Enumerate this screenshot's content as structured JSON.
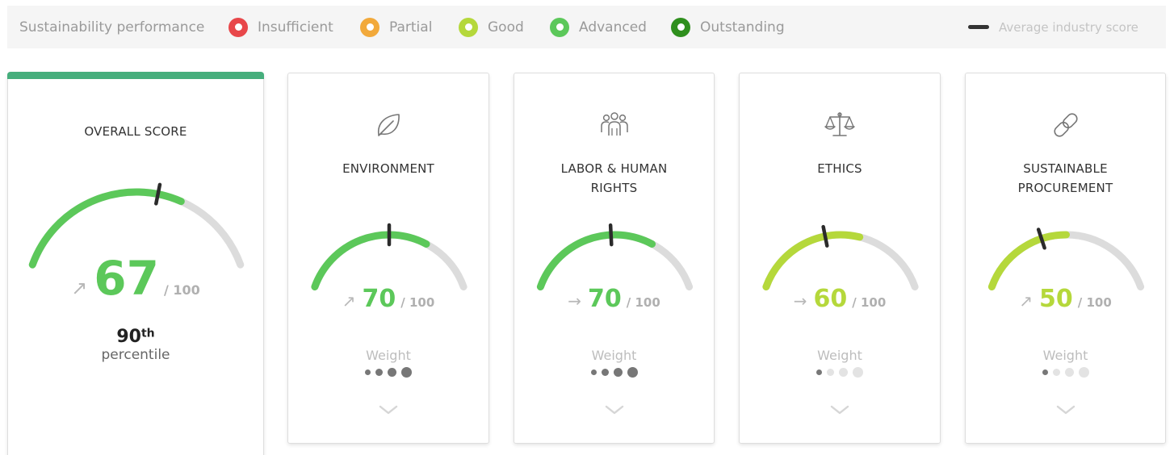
{
  "legend": {
    "title": "Sustainability performance",
    "items": [
      {
        "label": "Insufficient",
        "color": "#e8474a"
      },
      {
        "label": "Partial",
        "color": "#f2a93b"
      },
      {
        "label": "Good",
        "color": "#b5d83b"
      },
      {
        "label": "Advanced",
        "color": "#5cc85a"
      },
      {
        "label": "Outstanding",
        "color": "#2f8f1d"
      }
    ],
    "average_label": "Average industry score"
  },
  "overall": {
    "title": "OVERALL SCORE",
    "score": "67",
    "max": "/ 100",
    "score_fraction": 0.67,
    "average_fraction": 0.58,
    "trend": "up",
    "color": "#5cc85a",
    "percentile_num": "90",
    "percentile_sup": "th",
    "percentile_label": "percentile"
  },
  "categories": [
    {
      "title_line1": "ENVIRONMENT",
      "title_line2": "",
      "icon": "leaf-icon",
      "score": "70",
      "max": "/ 100",
      "score_fraction": 0.7,
      "average_fraction": 0.5,
      "trend": "up",
      "color": "#5cc85a",
      "weight_label": "Weight",
      "weight_level": 4
    },
    {
      "title_line1": "LABOR & HUMAN",
      "title_line2": "RIGHTS",
      "icon": "people-icon",
      "score": "70",
      "max": "/ 100",
      "score_fraction": 0.7,
      "average_fraction": 0.48,
      "trend": "flat",
      "color": "#5cc85a",
      "weight_label": "Weight",
      "weight_level": 4
    },
    {
      "title_line1": "ETHICS",
      "title_line2": "",
      "icon": "scales-icon",
      "score": "60",
      "max": "/ 100",
      "score_fraction": 0.6,
      "average_fraction": 0.42,
      "trend": "flat",
      "color": "#b5d83b",
      "weight_label": "Weight",
      "weight_level": 1
    },
    {
      "title_line1": "SUSTAINABLE",
      "title_line2": "PROCUREMENT",
      "icon": "link-icon",
      "score": "50",
      "max": "/ 100",
      "score_fraction": 0.5,
      "average_fraction": 0.37,
      "trend": "up",
      "color": "#b5d83b",
      "weight_label": "Weight",
      "weight_level": 1
    }
  ]
}
